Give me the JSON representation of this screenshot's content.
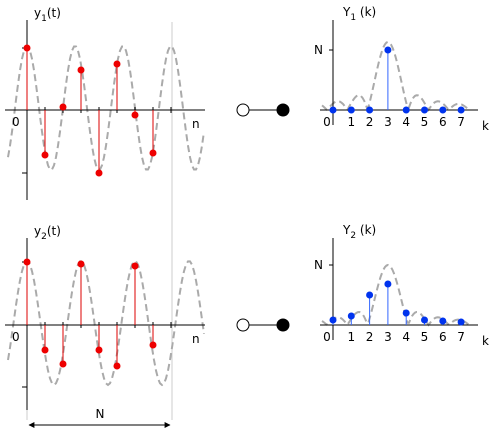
{
  "top": {
    "time_label": {
      "base": "y",
      "sub": "1",
      "rest": "(t)"
    },
    "origin": "0",
    "axis_label": "n",
    "freq_label": {
      "base": "Y",
      "sub": "1",
      "rest": " (k)"
    },
    "freq_n": "N",
    "freq_axis_label": "k",
    "k_ticks": [
      "0",
      "1",
      "2",
      "3",
      "4",
      "5",
      "6",
      "7"
    ]
  },
  "bottom": {
    "time_label": {
      "base": "y",
      "sub": "2",
      "rest": "(t)"
    },
    "origin": "0",
    "axis_label": "n",
    "freq_label": {
      "base": "Y",
      "sub": "2",
      "rest": " (k)"
    },
    "freq_n": "N",
    "freq_axis_label": "k",
    "k_ticks": [
      "0",
      "1",
      "2",
      "3",
      "4",
      "5",
      "6",
      "7"
    ]
  },
  "period_label": "N"
}
